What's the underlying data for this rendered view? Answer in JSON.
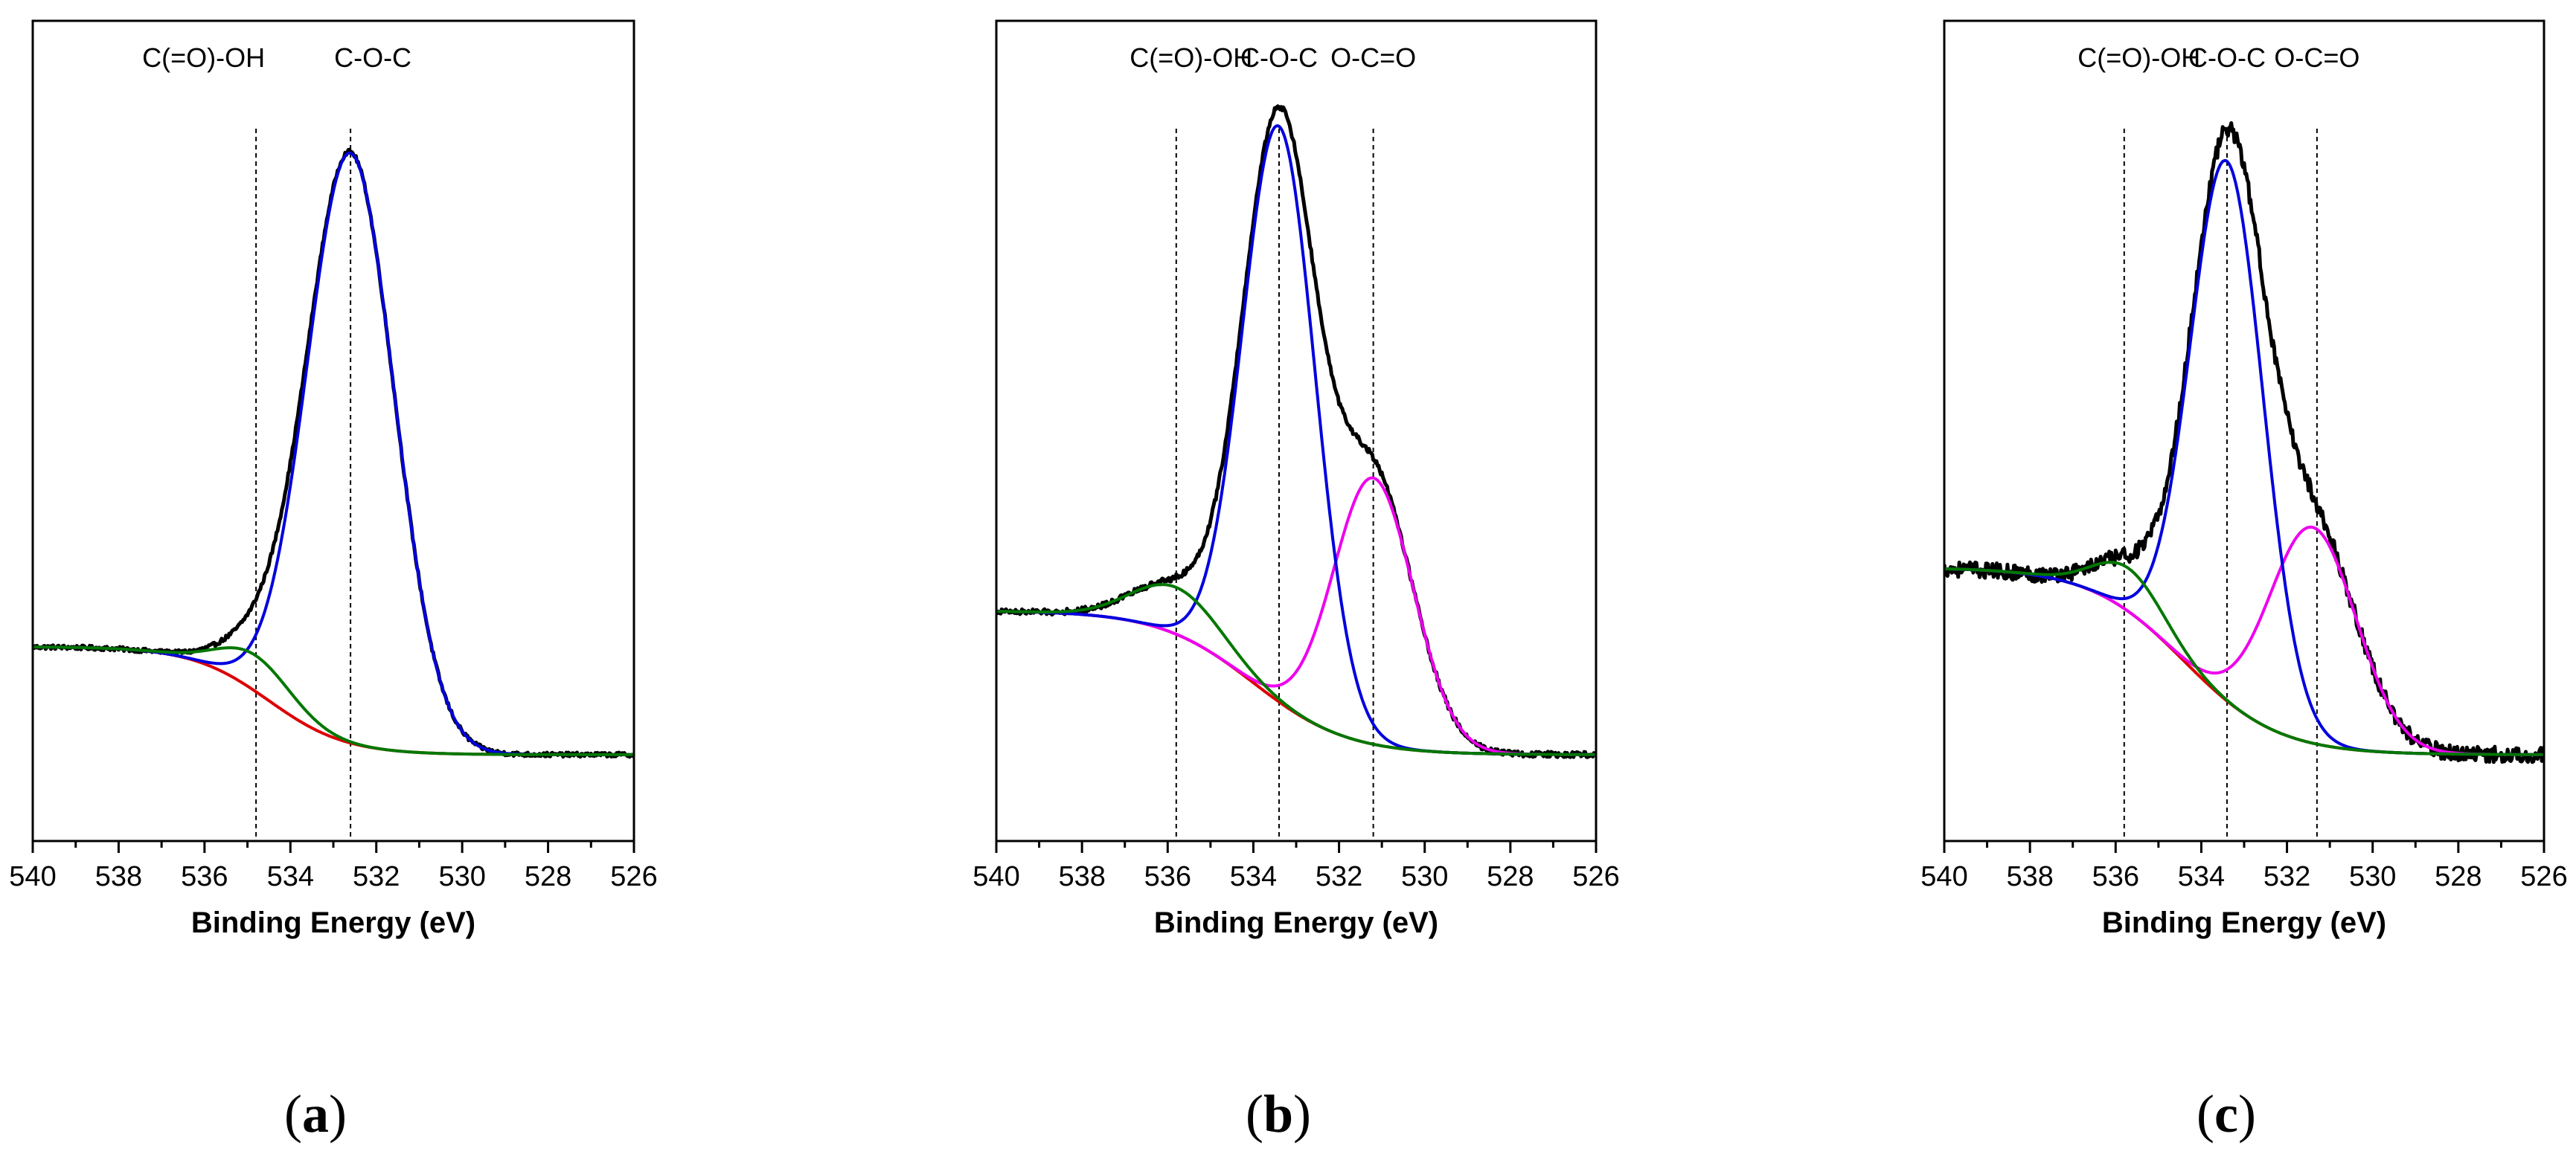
{
  "figure": {
    "xlabel": "Binding Energy (eV)",
    "xticks": [
      540,
      538,
      536,
      534,
      532,
      530,
      528,
      526
    ],
    "xlim": [
      540,
      526
    ],
    "ylim": [
      -0.12,
      1.02
    ]
  },
  "colors": {
    "raw": "#000000",
    "background": "#dd0000",
    "cooh": "#007700",
    "coc": "#0000dd",
    "oco": "#ee00ee",
    "refline": "#000000"
  },
  "chart_data": [
    {
      "type": "line",
      "panel": "a",
      "caption": "(a)",
      "xlabel": "Binding Energy (eV)",
      "xlim": [
        540,
        526
      ],
      "ylim": [
        -0.12,
        1.02
      ],
      "baseline": {
        "left": 0.15,
        "right": 0.0,
        "center": 534.5,
        "width": 0.9
      },
      "components": [
        {
          "name": "C(=O)-OH",
          "center": 534.8,
          "amplitude": 0.05,
          "fwhm": 2.0,
          "color": "#007700"
        },
        {
          "name": "C-O-C",
          "center": 532.6,
          "amplitude": 0.82,
          "fwhm": 2.4,
          "color": "#0000dd"
        }
      ],
      "reference_lines": [
        {
          "label": "C(=O)-OH",
          "x": 534.8
        },
        {
          "label": "C-O-C",
          "x": 532.6
        }
      ],
      "noise": 0.003
    },
    {
      "type": "line",
      "panel": "b",
      "caption": "(b)",
      "xlabel": "Binding Energy (eV)",
      "xlim": [
        540,
        526
      ],
      "ylim": [
        -0.12,
        1.02
      ],
      "baseline": {
        "left": 0.2,
        "right": 0.0,
        "center": 534.0,
        "width": 1.1
      },
      "components": [
        {
          "name": "C(=O)-OH",
          "center": 535.8,
          "amplitude": 0.065,
          "fwhm": 2.4,
          "color": "#007700"
        },
        {
          "name": "C-O-C",
          "center": 533.4,
          "amplitude": 0.8,
          "fwhm": 2.0,
          "color": "#0000dd"
        },
        {
          "name": "O-C=O",
          "center": 531.2,
          "amplitude": 0.37,
          "fwhm": 2.2,
          "color": "#ee00ee"
        }
      ],
      "reference_lines": [
        {
          "label": "C(=O)-OH",
          "x": 535.8
        },
        {
          "label": "C-O-C",
          "x": 533.4
        },
        {
          "label": "O-C=O",
          "x": 531.2
        }
      ],
      "noise": 0.004
    },
    {
      "type": "line",
      "panel": "c",
      "caption": "(c)",
      "xlabel": "Binding Energy (eV)",
      "xlim": [
        540,
        526
      ],
      "ylim": [
        -0.12,
        1.02
      ],
      "baseline": {
        "left": 0.26,
        "right": 0.0,
        "center": 534.4,
        "width": 1.1
      },
      "components": [
        {
          "name": "C(=O)-OH",
          "center": 535.7,
          "amplitude": 0.06,
          "fwhm": 1.9,
          "color": "#007700"
        },
        {
          "name": "C-O-C",
          "center": 533.4,
          "amplitude": 0.75,
          "fwhm": 2.0,
          "color": "#0000dd"
        },
        {
          "name": "O-C=O",
          "center": 531.4,
          "amplitude": 0.3,
          "fwhm": 2.4,
          "color": "#ee00ee"
        }
      ],
      "reference_lines": [
        {
          "label": "C(=O)-OH",
          "x": 535.8
        },
        {
          "label": "C-O-C",
          "x": 533.4
        },
        {
          "label": "O-C=O",
          "x": 531.3
        }
      ],
      "noise": 0.011
    }
  ]
}
